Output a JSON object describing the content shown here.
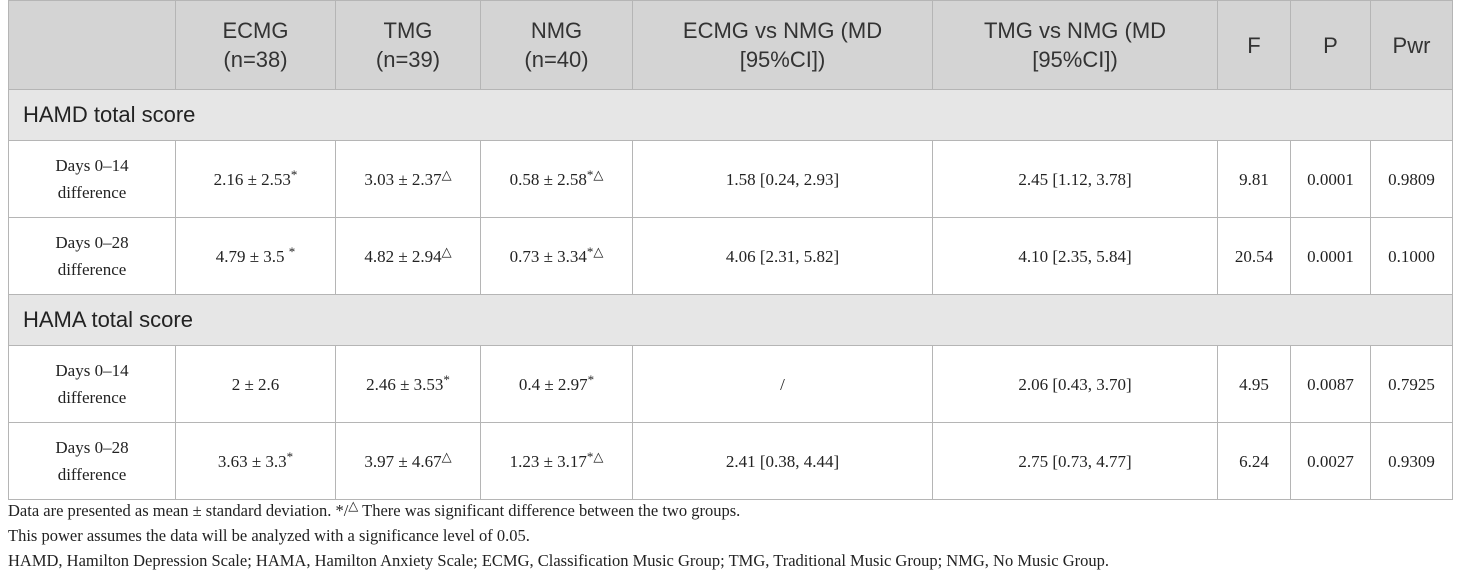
{
  "table": {
    "header": [
      [
        "ECMG",
        "(n=38)"
      ],
      [
        "TMG",
        "(n=39)"
      ],
      [
        "NMG",
        "(n=40)"
      ],
      [
        "ECMG vs NMG (MD",
        "[95%CI])"
      ],
      [
        "TMG vs NMG (MD",
        "[95%CI])"
      ],
      [
        "F"
      ],
      [
        "P"
      ],
      [
        "Pwr"
      ]
    ],
    "sections": [
      {
        "title": "HAMD total score",
        "rows": [
          {
            "label": [
              "Days 0–14",
              "difference"
            ],
            "cells": [
              {
                "main": "2.16 ± 2.53",
                "sup": "*"
              },
              {
                "main": "3.03 ± 2.37",
                "sup": "△"
              },
              {
                "main": "0.58 ± 2.58",
                "sup": "*△"
              },
              {
                "main": "1.58 [0.24, 2.93]"
              },
              {
                "main": "2.45 [1.12, 3.78]"
              },
              {
                "main": "9.81"
              },
              {
                "main": "0.0001"
              },
              {
                "main": "0.9809"
              }
            ]
          },
          {
            "label": [
              "Days 0–28",
              "difference"
            ],
            "cells": [
              {
                "main": "4.79 ± 3.5 ",
                "sup": "*"
              },
              {
                "main": "4.82 ± 2.94",
                "sup": "△"
              },
              {
                "main": "0.73 ± 3.34",
                "sup": "*△"
              },
              {
                "main": "4.06 [2.31, 5.82]"
              },
              {
                "main": "4.10 [2.35, 5.84]"
              },
              {
                "main": "20.54"
              },
              {
                "main": "0.0001"
              },
              {
                "main": "0.1000"
              }
            ]
          }
        ]
      },
      {
        "title": "HAMA total score",
        "rows": [
          {
            "label": [
              "Days 0–14",
              "difference"
            ],
            "cells": [
              {
                "main": "2 ± 2.6"
              },
              {
                "main": "2.46 ± 3.53",
                "sup": "*"
              },
              {
                "main": "0.4 ± 2.97",
                "sup": "*"
              },
              {
                "main": "/"
              },
              {
                "main": "2.06 [0.43, 3.70]"
              },
              {
                "main": "4.95"
              },
              {
                "main": "0.0087"
              },
              {
                "main": "0.7925"
              }
            ]
          },
          {
            "label": [
              "Days 0–28",
              "difference"
            ],
            "cells": [
              {
                "main": "3.63 ± 3.3",
                "sup": "*"
              },
              {
                "main": "3.97 ± 4.67",
                "sup": "△"
              },
              {
                "main": "1.23 ± 3.17",
                "sup": "*△"
              },
              {
                "main": "2.41 [0.38, 4.44]"
              },
              {
                "main": "2.75 [0.73, 4.77]"
              },
              {
                "main": "6.24"
              },
              {
                "main": "0.0027"
              },
              {
                "main": "0.9309"
              }
            ]
          }
        ]
      }
    ],
    "footnotes": [
      {
        "before": "Data are presented as mean ± standard deviation. */",
        "sup": "△",
        "after": " There was significant difference between the two groups."
      },
      {
        "before": "This power assumes the data will be analyzed with a significance level of 0.05."
      },
      {
        "before": "HAMD, Hamilton Depression Scale; HAMA, Hamilton Anxiety Scale; ECMG, Classification Music Group; TMG, Traditional Music Group; NMG, No Music Group."
      }
    ]
  }
}
